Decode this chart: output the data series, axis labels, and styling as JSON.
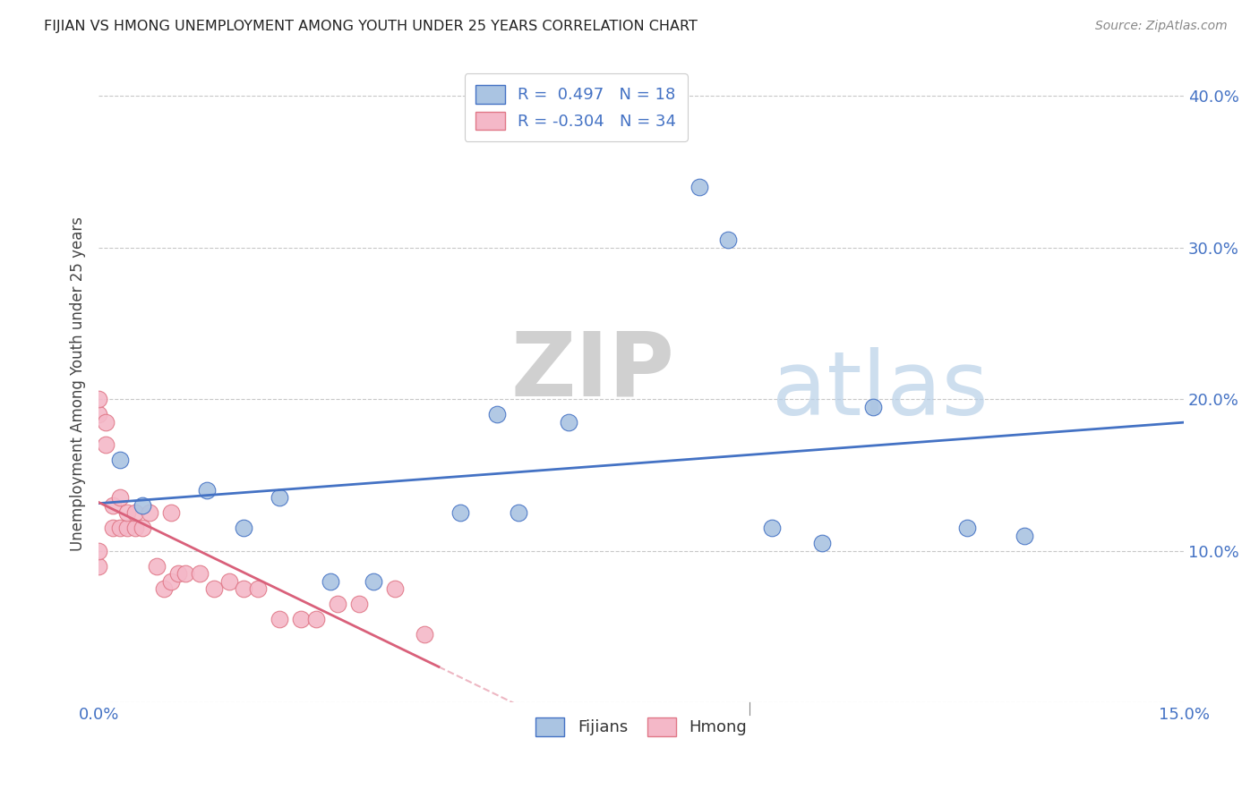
{
  "title": "FIJIAN VS HMONG UNEMPLOYMENT AMONG YOUTH UNDER 25 YEARS CORRELATION CHART",
  "source": "Source: ZipAtlas.com",
  "ylabel": "Unemployment Among Youth under 25 years",
  "xlim": [
    0.0,
    0.15
  ],
  "ylim": [
    0.0,
    0.42
  ],
  "xticks": [
    0.0,
    0.03,
    0.06,
    0.09,
    0.12,
    0.15
  ],
  "xtick_labels": [
    "0.0%",
    "",
    "",
    "",
    "",
    "15.0%"
  ],
  "yticks": [
    0.0,
    0.1,
    0.2,
    0.3,
    0.4
  ],
  "ytick_labels": [
    "",
    "10.0%",
    "20.0%",
    "30.0%",
    "40.0%"
  ],
  "background_color": "#ffffff",
  "grid_color": "#c8c8c8",
  "watermark_zip": "ZIP",
  "watermark_atlas": "atlas",
  "fijian_color": "#aac4e2",
  "hmong_color": "#f4b8c8",
  "fijian_edge_color": "#4472c4",
  "hmong_edge_color": "#e07888",
  "fijian_line_color": "#4472c4",
  "hmong_line_color": "#d9607a",
  "legend_R_fijian": "0.497",
  "legend_N_fijian": "18",
  "legend_R_hmong": "-0.304",
  "legend_N_hmong": "34",
  "fijian_x": [
    0.003,
    0.006,
    0.015,
    0.02,
    0.025,
    0.032,
    0.038,
    0.05,
    0.055,
    0.058,
    0.065,
    0.083,
    0.087,
    0.093,
    0.1,
    0.107,
    0.12,
    0.128
  ],
  "fijian_y": [
    0.16,
    0.13,
    0.14,
    0.115,
    0.135,
    0.08,
    0.08,
    0.125,
    0.19,
    0.125,
    0.185,
    0.34,
    0.305,
    0.115,
    0.105,
    0.195,
    0.115,
    0.11
  ],
  "hmong_x": [
    0.0,
    0.0,
    0.0,
    0.0,
    0.001,
    0.001,
    0.002,
    0.002,
    0.003,
    0.003,
    0.004,
    0.004,
    0.005,
    0.005,
    0.006,
    0.007,
    0.008,
    0.009,
    0.01,
    0.01,
    0.011,
    0.012,
    0.014,
    0.016,
    0.018,
    0.02,
    0.022,
    0.025,
    0.028,
    0.03,
    0.033,
    0.036,
    0.041,
    0.045
  ],
  "hmong_y": [
    0.09,
    0.1,
    0.19,
    0.2,
    0.17,
    0.185,
    0.115,
    0.13,
    0.115,
    0.135,
    0.115,
    0.125,
    0.115,
    0.125,
    0.115,
    0.125,
    0.09,
    0.075,
    0.08,
    0.125,
    0.085,
    0.085,
    0.085,
    0.075,
    0.08,
    0.075,
    0.075,
    0.055,
    0.055,
    0.055,
    0.065,
    0.065,
    0.075,
    0.045
  ]
}
